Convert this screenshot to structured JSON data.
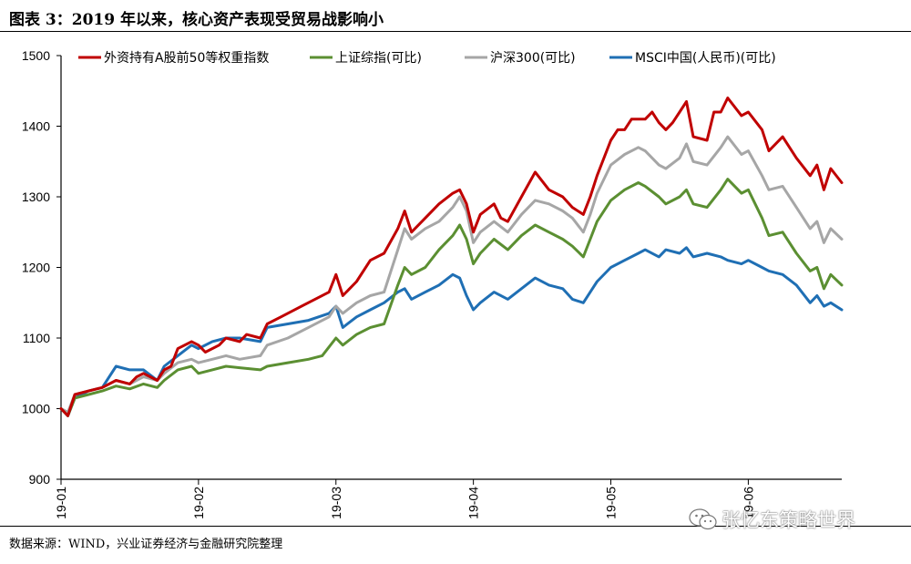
{
  "page": {
    "title": "图表 3：2019 年以来，核心资产表现受贸易战影响小",
    "source": "数据来源：WIND，兴业证券经济与金融研究院整理",
    "watermark": "张忆东策略世界",
    "watermark_icon": "wechat-icon"
  },
  "chart_data": {
    "type": "line",
    "title": "",
    "xlabel": "",
    "ylabel": "",
    "ylim": [
      900,
      1500
    ],
    "yticks": [
      "900",
      "1000",
      "1100",
      "1200",
      "1300",
      "1400",
      "1500"
    ],
    "xticks": [
      "19-01",
      "19-02",
      "19-03",
      "19-04",
      "19-05",
      "19-06"
    ],
    "xlim": [
      0,
      5.68
    ],
    "grid": false,
    "legend": "top",
    "series": [
      {
        "name": "外资持有A股前50等权重指数",
        "color": "#C00000",
        "points": [
          [
            0,
            1000
          ],
          [
            0.05,
            990
          ],
          [
            0.1,
            1020
          ],
          [
            0.2,
            1025
          ],
          [
            0.3,
            1030
          ],
          [
            0.4,
            1040
          ],
          [
            0.5,
            1035
          ],
          [
            0.55,
            1045
          ],
          [
            0.6,
            1050
          ],
          [
            0.7,
            1040
          ],
          [
            0.75,
            1055
          ],
          [
            0.8,
            1060
          ],
          [
            0.85,
            1085
          ],
          [
            0.95,
            1095
          ],
          [
            1.0,
            1090
          ],
          [
            1.05,
            1080
          ],
          [
            1.15,
            1090
          ],
          [
            1.2,
            1100
          ],
          [
            1.3,
            1095
          ],
          [
            1.35,
            1105
          ],
          [
            1.45,
            1100
          ],
          [
            1.5,
            1120
          ],
          [
            1.6,
            1130
          ],
          [
            1.75,
            1145
          ],
          [
            1.95,
            1165
          ],
          [
            2.0,
            1190
          ],
          [
            2.05,
            1160
          ],
          [
            2.15,
            1180
          ],
          [
            2.25,
            1210
          ],
          [
            2.35,
            1220
          ],
          [
            2.45,
            1255
          ],
          [
            2.5,
            1280
          ],
          [
            2.55,
            1250
          ],
          [
            2.65,
            1270
          ],
          [
            2.75,
            1290
          ],
          [
            2.85,
            1305
          ],
          [
            2.9,
            1310
          ],
          [
            2.95,
            1290
          ],
          [
            3.0,
            1250
          ],
          [
            3.05,
            1275
          ],
          [
            3.15,
            1290
          ],
          [
            3.2,
            1270
          ],
          [
            3.25,
            1265
          ],
          [
            3.35,
            1300
          ],
          [
            3.45,
            1335
          ],
          [
            3.55,
            1310
          ],
          [
            3.65,
            1300
          ],
          [
            3.72,
            1285
          ],
          [
            3.8,
            1275
          ],
          [
            3.85,
            1300
          ],
          [
            3.9,
            1330
          ],
          [
            4.0,
            1380
          ],
          [
            4.05,
            1395
          ],
          [
            4.1,
            1395
          ],
          [
            4.15,
            1410
          ],
          [
            4.25,
            1410
          ],
          [
            4.3,
            1420
          ],
          [
            4.35,
            1405
          ],
          [
            4.4,
            1395
          ],
          [
            4.45,
            1405
          ],
          [
            4.5,
            1420
          ],
          [
            4.55,
            1435
          ],
          [
            4.6,
            1385
          ],
          [
            4.7,
            1380
          ],
          [
            4.75,
            1420
          ],
          [
            4.8,
            1420
          ],
          [
            4.85,
            1440
          ],
          [
            4.95,
            1415
          ],
          [
            5.0,
            1420
          ],
          [
            5.1,
            1395
          ],
          [
            5.15,
            1365
          ],
          [
            5.25,
            1385
          ],
          [
            5.35,
            1355
          ],
          [
            5.45,
            1330
          ],
          [
            5.5,
            1345
          ],
          [
            5.55,
            1310
          ],
          [
            5.6,
            1340
          ],
          [
            5.68,
            1320
          ]
        ]
      },
      {
        "name": "上证综指(可比)",
        "color": "#5B8F32",
        "points": [
          [
            0,
            1000
          ],
          [
            0.05,
            990
          ],
          [
            0.1,
            1015
          ],
          [
            0.2,
            1020
          ],
          [
            0.3,
            1025
          ],
          [
            0.4,
            1032
          ],
          [
            0.5,
            1028
          ],
          [
            0.6,
            1035
          ],
          [
            0.7,
            1030
          ],
          [
            0.75,
            1040
          ],
          [
            0.85,
            1055
          ],
          [
            0.95,
            1060
          ],
          [
            1.0,
            1050
          ],
          [
            1.1,
            1055
          ],
          [
            1.2,
            1060
          ],
          [
            1.3,
            1058
          ],
          [
            1.45,
            1055
          ],
          [
            1.5,
            1060
          ],
          [
            1.65,
            1065
          ],
          [
            1.8,
            1070
          ],
          [
            1.9,
            1075
          ],
          [
            2.0,
            1100
          ],
          [
            2.05,
            1090
          ],
          [
            2.15,
            1105
          ],
          [
            2.25,
            1115
          ],
          [
            2.35,
            1120
          ],
          [
            2.45,
            1175
          ],
          [
            2.5,
            1200
          ],
          [
            2.55,
            1190
          ],
          [
            2.65,
            1200
          ],
          [
            2.75,
            1225
          ],
          [
            2.85,
            1245
          ],
          [
            2.9,
            1260
          ],
          [
            2.95,
            1240
          ],
          [
            3.0,
            1205
          ],
          [
            3.05,
            1220
          ],
          [
            3.15,
            1240
          ],
          [
            3.25,
            1225
          ],
          [
            3.35,
            1245
          ],
          [
            3.45,
            1260
          ],
          [
            3.55,
            1250
          ],
          [
            3.65,
            1240
          ],
          [
            3.72,
            1230
          ],
          [
            3.8,
            1215
          ],
          [
            3.85,
            1240
          ],
          [
            3.9,
            1265
          ],
          [
            4.0,
            1295
          ],
          [
            4.1,
            1310
          ],
          [
            4.2,
            1320
          ],
          [
            4.25,
            1315
          ],
          [
            4.35,
            1300
          ],
          [
            4.4,
            1290
          ],
          [
            4.5,
            1300
          ],
          [
            4.55,
            1310
          ],
          [
            4.6,
            1290
          ],
          [
            4.7,
            1285
          ],
          [
            4.8,
            1310
          ],
          [
            4.85,
            1325
          ],
          [
            4.95,
            1305
          ],
          [
            5.0,
            1310
          ],
          [
            5.1,
            1270
          ],
          [
            5.15,
            1245
          ],
          [
            5.25,
            1250
          ],
          [
            5.35,
            1220
          ],
          [
            5.45,
            1195
          ],
          [
            5.5,
            1200
          ],
          [
            5.55,
            1170
          ],
          [
            5.6,
            1190
          ],
          [
            5.68,
            1175
          ]
        ]
      },
      {
        "name": "沪深300(可比)",
        "color": "#A6A6A6",
        "points": [
          [
            0,
            1000
          ],
          [
            0.05,
            995
          ],
          [
            0.1,
            1020
          ],
          [
            0.2,
            1025
          ],
          [
            0.3,
            1030
          ],
          [
            0.4,
            1040
          ],
          [
            0.5,
            1035
          ],
          [
            0.6,
            1045
          ],
          [
            0.7,
            1040
          ],
          [
            0.75,
            1050
          ],
          [
            0.85,
            1065
          ],
          [
            0.95,
            1070
          ],
          [
            1.0,
            1065
          ],
          [
            1.1,
            1070
          ],
          [
            1.2,
            1075
          ],
          [
            1.3,
            1070
          ],
          [
            1.45,
            1075
          ],
          [
            1.5,
            1090
          ],
          [
            1.65,
            1100
          ],
          [
            1.8,
            1115
          ],
          [
            1.95,
            1130
          ],
          [
            2.0,
            1145
          ],
          [
            2.05,
            1135
          ],
          [
            2.15,
            1150
          ],
          [
            2.25,
            1160
          ],
          [
            2.35,
            1165
          ],
          [
            2.45,
            1225
          ],
          [
            2.5,
            1255
          ],
          [
            2.55,
            1240
          ],
          [
            2.65,
            1255
          ],
          [
            2.75,
            1265
          ],
          [
            2.85,
            1285
          ],
          [
            2.9,
            1300
          ],
          [
            2.95,
            1280
          ],
          [
            3.0,
            1235
          ],
          [
            3.05,
            1250
          ],
          [
            3.15,
            1265
          ],
          [
            3.25,
            1250
          ],
          [
            3.35,
            1275
          ],
          [
            3.45,
            1295
          ],
          [
            3.55,
            1290
          ],
          [
            3.65,
            1280
          ],
          [
            3.72,
            1270
          ],
          [
            3.8,
            1250
          ],
          [
            3.85,
            1275
          ],
          [
            3.9,
            1305
          ],
          [
            4.0,
            1345
          ],
          [
            4.1,
            1360
          ],
          [
            4.2,
            1370
          ],
          [
            4.25,
            1365
          ],
          [
            4.35,
            1345
          ],
          [
            4.4,
            1340
          ],
          [
            4.5,
            1355
          ],
          [
            4.55,
            1375
          ],
          [
            4.6,
            1350
          ],
          [
            4.7,
            1345
          ],
          [
            4.8,
            1370
          ],
          [
            4.85,
            1385
          ],
          [
            4.95,
            1360
          ],
          [
            5.0,
            1365
          ],
          [
            5.1,
            1330
          ],
          [
            5.15,
            1310
          ],
          [
            5.25,
            1315
          ],
          [
            5.35,
            1285
          ],
          [
            5.45,
            1255
          ],
          [
            5.5,
            1265
          ],
          [
            5.55,
            1235
          ],
          [
            5.6,
            1255
          ],
          [
            5.68,
            1240
          ]
        ]
      },
      {
        "name": "MSCI中国(人民币)(可比)",
        "color": "#1F6FB4",
        "points": [
          [
            0,
            1000
          ],
          [
            0.05,
            990
          ],
          [
            0.1,
            1015
          ],
          [
            0.2,
            1025
          ],
          [
            0.3,
            1030
          ],
          [
            0.4,
            1060
          ],
          [
            0.5,
            1055
          ],
          [
            0.6,
            1055
          ],
          [
            0.7,
            1040
          ],
          [
            0.75,
            1060
          ],
          [
            0.85,
            1075
          ],
          [
            0.95,
            1090
          ],
          [
            1.0,
            1085
          ],
          [
            1.1,
            1095
          ],
          [
            1.2,
            1100
          ],
          [
            1.3,
            1100
          ],
          [
            1.45,
            1095
          ],
          [
            1.5,
            1115
          ],
          [
            1.65,
            1120
          ],
          [
            1.8,
            1125
          ],
          [
            1.95,
            1135
          ],
          [
            2.0,
            1145
          ],
          [
            2.05,
            1115
          ],
          [
            2.15,
            1130
          ],
          [
            2.25,
            1140
          ],
          [
            2.35,
            1150
          ],
          [
            2.45,
            1165
          ],
          [
            2.5,
            1170
          ],
          [
            2.55,
            1155
          ],
          [
            2.65,
            1165
          ],
          [
            2.75,
            1175
          ],
          [
            2.85,
            1190
          ],
          [
            2.9,
            1185
          ],
          [
            2.95,
            1160
          ],
          [
            3.0,
            1140
          ],
          [
            3.05,
            1150
          ],
          [
            3.15,
            1165
          ],
          [
            3.25,
            1155
          ],
          [
            3.35,
            1170
          ],
          [
            3.45,
            1185
          ],
          [
            3.55,
            1175
          ],
          [
            3.65,
            1170
          ],
          [
            3.72,
            1155
          ],
          [
            3.8,
            1150
          ],
          [
            3.85,
            1165
          ],
          [
            3.9,
            1180
          ],
          [
            4.0,
            1200
          ],
          [
            4.1,
            1210
          ],
          [
            4.2,
            1220
          ],
          [
            4.25,
            1225
          ],
          [
            4.35,
            1215
          ],
          [
            4.4,
            1225
          ],
          [
            4.5,
            1220
          ],
          [
            4.55,
            1228
          ],
          [
            4.6,
            1215
          ],
          [
            4.7,
            1220
          ],
          [
            4.8,
            1215
          ],
          [
            4.85,
            1210
          ],
          [
            4.95,
            1205
          ],
          [
            5.0,
            1210
          ],
          [
            5.1,
            1200
          ],
          [
            5.15,
            1195
          ],
          [
            5.25,
            1190
          ],
          [
            5.35,
            1175
          ],
          [
            5.45,
            1150
          ],
          [
            5.5,
            1160
          ],
          [
            5.55,
            1145
          ],
          [
            5.6,
            1150
          ],
          [
            5.68,
            1140
          ]
        ]
      }
    ]
  }
}
